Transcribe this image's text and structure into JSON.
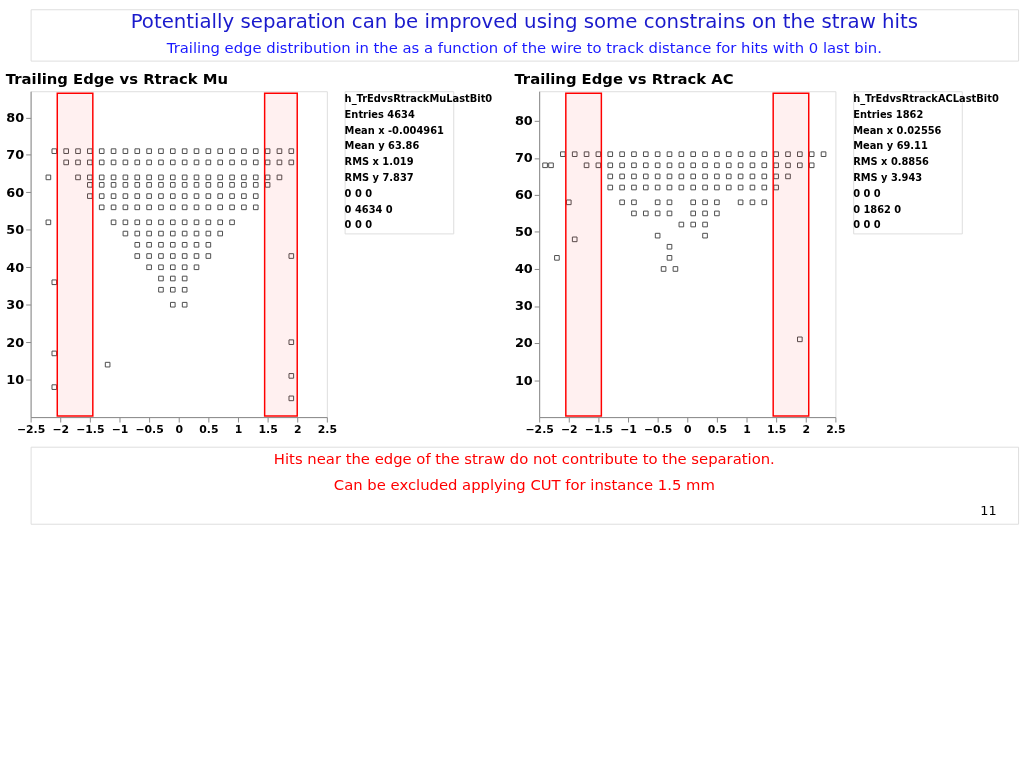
{
  "chart_data": [
    {
      "type": "other",
      "title": "Potentially separation can be improved using some constrains on the straw hits",
      "subtitle": "Trailing edge distribution in the as a function of the wire to track distance for hits with 0 last bin."
    },
    {
      "type": "scatter",
      "title": "Trailing Edge vs Rtrack Mu",
      "xlim": [
        -2.5,
        2.5
      ],
      "ylim": [
        0,
        87
      ],
      "xticks": [
        -2.5,
        -2,
        -1.5,
        -1,
        -0.5,
        0,
        0.5,
        1,
        1.5,
        2,
        2.5
      ],
      "yticks": [
        10,
        20,
        30,
        40,
        50,
        60,
        70,
        80
      ],
      "grid": false,
      "marker": "square",
      "annotations": [
        "h_TrEdvsRtrackMuLastBit0",
        "Entries 4634",
        "Mean x -0.004961",
        "Mean y 63.86",
        "RMS x 1.019",
        "RMS y 7.837",
        "0 0 0",
        "0 4634 0",
        "0 0 0"
      ],
      "bands": [
        {
          "axis": "x",
          "from": -2.05,
          "to": -1.45,
          "color": "#ff0000"
        },
        {
          "axis": "x",
          "from": 1.45,
          "to": 2.0,
          "color": "#ff0000"
        }
      ],
      "series": [
        {
          "color": "#000000",
          "x": [
            -2.1,
            -1.9,
            -1.7,
            -1.5,
            -1.3,
            -1.1,
            -0.9,
            -0.7,
            -0.5,
            -0.3,
            -0.1,
            0.1,
            0.3,
            0.5,
            0.7,
            0.9,
            1.1,
            1.3,
            1.5,
            1.7,
            1.9
          ],
          "values": [
            71,
            71,
            71,
            71,
            71,
            71,
            71,
            71,
            71,
            71,
            71,
            71,
            71,
            71,
            71,
            71,
            71,
            71,
            71,
            71,
            71
          ]
        },
        {
          "color": "#000000",
          "x": [
            -1.9,
            -1.7,
            -1.5,
            -1.3,
            -1.1,
            -0.9,
            -0.7,
            -0.5,
            -0.3,
            -0.1,
            0.1,
            0.3,
            0.5,
            0.7,
            0.9,
            1.1,
            1.3,
            1.5,
            1.7,
            1.9
          ],
          "values": [
            68,
            68,
            68,
            68,
            68,
            68,
            68,
            68,
            68,
            68,
            68,
            68,
            68,
            68,
            68,
            68,
            68,
            68,
            68,
            68
          ]
        },
        {
          "color": "#000000",
          "x": [
            -1.7,
            -1.5,
            -1.3,
            -1.1,
            -0.9,
            -0.7,
            -0.5,
            -0.3,
            -0.1,
            0.1,
            0.3,
            0.5,
            0.7,
            0.9,
            1.1,
            1.3,
            1.5,
            1.7
          ],
          "values": [
            64,
            64,
            64,
            64,
            64,
            64,
            64,
            64,
            64,
            64,
            64,
            64,
            64,
            64,
            64,
            64,
            64,
            64
          ]
        },
        {
          "color": "#000000",
          "x": [
            -1.5,
            -1.3,
            -1.1,
            -0.9,
            -0.7,
            -0.5,
            -0.3,
            -0.1,
            0.1,
            0.3,
            0.5,
            0.7,
            0.9,
            1.1,
            1.3,
            1.5
          ],
          "values": [
            62,
            62,
            62,
            62,
            62,
            62,
            62,
            62,
            62,
            62,
            62,
            62,
            62,
            62,
            62,
            62
          ]
        },
        {
          "color": "#000000",
          "x": [
            -1.5,
            -1.3,
            -1.1,
            -0.9,
            -0.7,
            -0.5,
            -0.3,
            -0.1,
            0.1,
            0.3,
            0.5,
            0.7,
            0.9,
            1.1,
            1.3
          ],
          "values": [
            59,
            59,
            59,
            59,
            59,
            59,
            59,
            59,
            59,
            59,
            59,
            59,
            59,
            59,
            59
          ]
        },
        {
          "color": "#000000",
          "x": [
            -1.3,
            -1.1,
            -0.9,
            -0.7,
            -0.5,
            -0.3,
            -0.1,
            0.1,
            0.3,
            0.5,
            0.7,
            0.9,
            1.1,
            1.3
          ],
          "values": [
            56,
            56,
            56,
            56,
            56,
            56,
            56,
            56,
            56,
            56,
            56,
            56,
            56,
            56
          ]
        },
        {
          "color": "#000000",
          "x": [
            -1.1,
            -0.9,
            -0.7,
            -0.5,
            -0.3,
            -0.1,
            0.1,
            0.3,
            0.5,
            0.7,
            0.9
          ],
          "values": [
            52,
            52,
            52,
            52,
            52,
            52,
            52,
            52,
            52,
            52,
            52
          ]
        },
        {
          "color": "#000000",
          "x": [
            -0.9,
            -0.7,
            -0.5,
            -0.3,
            -0.1,
            0.1,
            0.3,
            0.5,
            0.7
          ],
          "values": [
            49,
            49,
            49,
            49,
            49,
            49,
            49,
            49,
            49
          ]
        },
        {
          "color": "#000000",
          "x": [
            -0.7,
            -0.5,
            -0.3,
            -0.1,
            0.1,
            0.3,
            0.5
          ],
          "values": [
            46,
            46,
            46,
            46,
            46,
            46,
            46
          ]
        },
        {
          "color": "#000000",
          "x": [
            -0.7,
            -0.5,
            -0.3,
            -0.1,
            0.1,
            0.3,
            0.5
          ],
          "values": [
            43,
            43,
            43,
            43,
            43,
            43,
            43
          ]
        },
        {
          "color": "#000000",
          "x": [
            -0.5,
            -0.3,
            -0.1,
            0.1,
            0.3
          ],
          "values": [
            40,
            40,
            40,
            40,
            40
          ]
        },
        {
          "color": "#000000",
          "x": [
            -0.3,
            -0.1,
            0.1,
            -0.3,
            -0.1,
            0.1,
            -0.1,
            0.1
          ],
          "values": [
            37,
            37,
            37,
            34,
            34,
            34,
            30,
            30
          ]
        },
        {
          "color": "#000000",
          "x": [
            -2.2,
            -2.2,
            -2.1,
            -2.1,
            -2.1,
            -1.2,
            1.9,
            1.9,
            1.9,
            1.9
          ],
          "values": [
            64,
            52,
            36,
            17,
            8,
            14,
            43,
            20,
            11,
            5
          ]
        }
      ]
    },
    {
      "type": "scatter",
      "title": "Trailing Edge vs Rtrack AC",
      "xlim": [
        -2.5,
        2.5
      ],
      "ylim": [
        0,
        88
      ],
      "xticks": [
        -2.5,
        -2,
        -1.5,
        -1,
        -0.5,
        0,
        0.5,
        1,
        1.5,
        2,
        2.5
      ],
      "yticks": [
        10,
        20,
        30,
        40,
        50,
        60,
        70,
        80
      ],
      "grid": false,
      "marker": "square",
      "annotations": [
        "h_TrEdvsRtrackACLastBit0",
        "Entries 1862",
        "Mean x 0.02556",
        "Mean y 69.11",
        "RMS x 0.8856",
        "RMS y 3.943",
        "0 0 0",
        "0 1862 0",
        "0 0 0"
      ],
      "bands": [
        {
          "axis": "x",
          "from": -2.05,
          "to": -1.45,
          "color": "#ff0000"
        },
        {
          "axis": "x",
          "from": 1.45,
          "to": 2.05,
          "color": "#ff0000"
        }
      ],
      "series": [
        {
          "color": "#000000",
          "x": [
            -1.7,
            -1.5,
            -1.3,
            -1.1,
            -0.9,
            -0.7,
            -0.5,
            -0.3,
            -0.1,
            0.1,
            0.3,
            0.5,
            0.7,
            0.9,
            1.1,
            1.3,
            1.5,
            1.7,
            1.9,
            2.1,
            2.3
          ],
          "values": [
            71,
            71,
            71,
            71,
            71,
            71,
            71,
            71,
            71,
            71,
            71,
            71,
            71,
            71,
            71,
            71,
            71,
            71,
            71,
            71,
            71
          ]
        },
        {
          "color": "#000000",
          "x": [
            -1.7,
            -1.5,
            -1.3,
            -1.1,
            -0.9,
            -0.7,
            -0.5,
            -0.3,
            -0.1,
            0.1,
            0.3,
            0.5,
            0.7,
            0.9,
            1.1,
            1.3,
            1.5,
            1.7,
            1.9,
            2.1
          ],
          "values": [
            68,
            68,
            68,
            68,
            68,
            68,
            68,
            68,
            68,
            68,
            68,
            68,
            68,
            68,
            68,
            68,
            68,
            68,
            68,
            68
          ]
        },
        {
          "color": "#000000",
          "x": [
            -1.3,
            -1.1,
            -0.9,
            -0.7,
            -0.5,
            -0.3,
            -0.1,
            0.1,
            0.3,
            0.5,
            0.7,
            0.9,
            1.1,
            1.3,
            1.5,
            1.7
          ],
          "values": [
            65,
            65,
            65,
            65,
            65,
            65,
            65,
            65,
            65,
            65,
            65,
            65,
            65,
            65,
            65,
            65
          ]
        },
        {
          "color": "#000000",
          "x": [
            -1.3,
            -1.1,
            -0.9,
            -0.7,
            -0.5,
            -0.3,
            -0.1,
            0.1,
            0.3,
            0.5,
            0.7,
            0.9,
            1.1,
            1.3,
            1.5
          ],
          "values": [
            62,
            62,
            62,
            62,
            62,
            62,
            62,
            62,
            62,
            62,
            62,
            62,
            62,
            62,
            62
          ]
        },
        {
          "color": "#000000",
          "x": [
            -1.1,
            -0.9,
            -0.5,
            -0.3,
            0.1,
            0.3,
            0.5,
            0.9,
            1.1,
            1.3
          ],
          "values": [
            58,
            58,
            58,
            58,
            58,
            58,
            58,
            58,
            58,
            58
          ]
        },
        {
          "color": "#000000",
          "x": [
            -0.9,
            -0.7,
            -0.5,
            -0.3,
            0.1,
            0.3,
            0.5
          ],
          "values": [
            55,
            55,
            55,
            55,
            55,
            55,
            55
          ]
        },
        {
          "color": "#000000",
          "x": [
            -0.1,
            0.1,
            0.3,
            -0.5,
            0.3,
            -0.3,
            -0.3,
            -0.4,
            -0.2
          ],
          "values": [
            52,
            52,
            52,
            49,
            49,
            46,
            43,
            40,
            40
          ]
        },
        {
          "color": "#000000",
          "x": [
            -2.1,
            -1.9,
            -2.4,
            -2.3,
            -2.0,
            -1.9,
            -2.2,
            1.9
          ],
          "values": [
            71,
            71,
            68,
            68,
            58,
            48,
            43,
            21
          ]
        }
      ]
    },
    {
      "type": "other",
      "annotations": [
        "Hits near the edge of the straw do not contribute to the separation.",
        "Can be excluded applying CUT for instance 1.5 mm",
        "11"
      ]
    }
  ]
}
